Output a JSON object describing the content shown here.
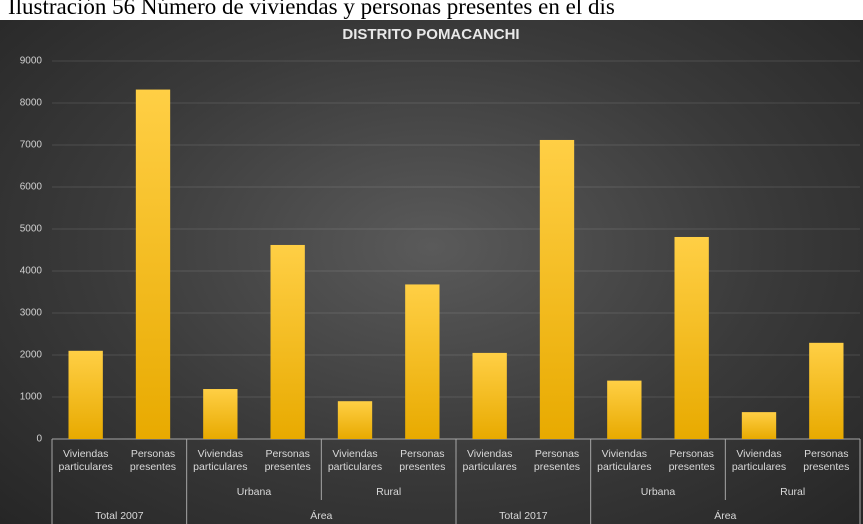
{
  "caption": "Ilustración 56 Número de viviendas y personas presentes en el dis",
  "chart_data": {
    "type": "bar",
    "title": "DISTRITO POMACANCHI",
    "groups": [
      {
        "label": "Total 2007",
        "subgroups": [
          {
            "label": null,
            "categories": [
              "Viviendas particulares",
              "Personas presentes"
            ]
          }
        ]
      },
      {
        "label": "Área",
        "subgroups": [
          {
            "label": "Urbana",
            "categories": [
              "Viviendas particulares",
              "Personas presentes"
            ]
          },
          {
            "label": "Rural",
            "categories": [
              "Viviendas particulares",
              "Personas presentes"
            ]
          }
        ]
      },
      {
        "label": "Total 2017",
        "subgroups": [
          {
            "label": null,
            "categories": [
              "Viviendas particulares",
              "Personas presentes"
            ]
          }
        ]
      },
      {
        "label": "Área",
        "subgroups": [
          {
            "label": "Urbana",
            "categories": [
              "Viviendas particulares",
              "Personas presentes"
            ]
          },
          {
            "label": "Rural",
            "categories": [
              "Viviendas particulares",
              "Personas presentes"
            ]
          }
        ]
      }
    ],
    "values": [
      2100,
      8320,
      1190,
      4620,
      900,
      3680,
      2050,
      7120,
      1390,
      4810,
      640,
      2290
    ],
    "color": "#ffc000",
    "ylim": [
      0,
      9000
    ],
    "yticks": [
      0,
      1000,
      2000,
      3000,
      4000,
      5000,
      6000,
      7000,
      8000,
      9000
    ],
    "grid": true
  }
}
